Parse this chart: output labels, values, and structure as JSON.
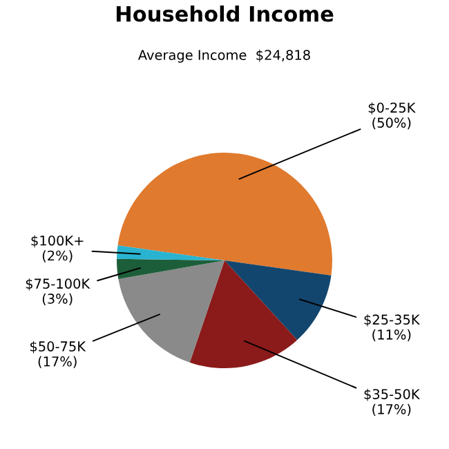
{
  "chart_data": {
    "type": "pie",
    "title": "Household Income",
    "subtitle": "Average Income  $24,818",
    "categories": [
      "$0-25K\n(50%)",
      "$25-35K\n(11%)",
      "$35-50K\n(17%)",
      "$50-75K\n(17%)",
      "$75-100K\n(3%)",
      "$100K+\n(2%)"
    ],
    "values": [
      50,
      11,
      17,
      17,
      3,
      2
    ],
    "colors": [
      "#e07a2e",
      "#13466e",
      "#8b1a1a",
      "#8a8a8a",
      "#1d5e3a",
      "#2ab3d0"
    ]
  }
}
